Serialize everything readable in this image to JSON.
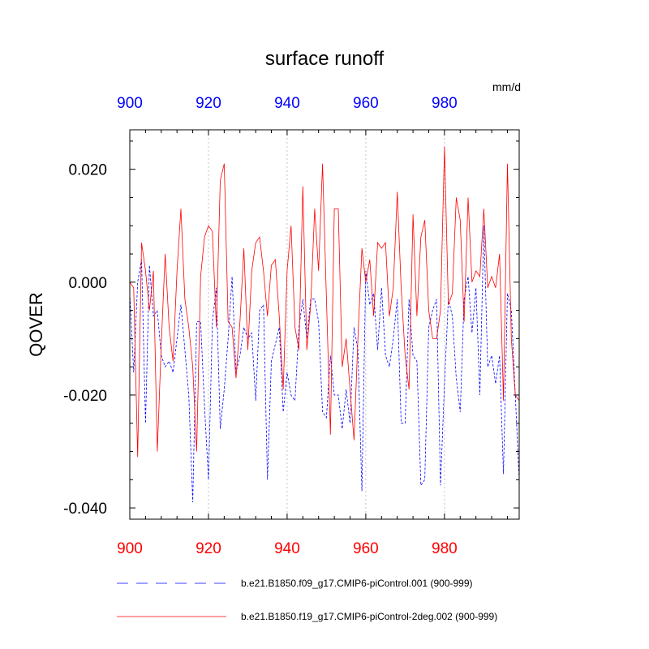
{
  "chart_data": {
    "type": "line",
    "title": "surface runoff",
    "units": "mm/d",
    "ylabel": "QOVER",
    "xlim": [
      900,
      999
    ],
    "ylim": [
      -0.042,
      0.027
    ],
    "x_ticks": [
      900,
      920,
      940,
      960,
      980
    ],
    "x_tick_labels": [
      "900",
      "920",
      "940",
      "960",
      "980"
    ],
    "y_ticks": [
      -0.04,
      -0.02,
      0.0,
      0.02
    ],
    "y_tick_labels": [
      "-0.040",
      "-0.020",
      "0.000",
      "0.020"
    ],
    "top_axis_color": "#0000ff",
    "bottom_axis_color": "#ff0000",
    "gridlines_x": [
      920,
      940,
      960,
      980
    ],
    "x_start": 900,
    "series": [
      {
        "name": "b.e21.B1850.f09_g17.CMIP6-piControl.001 (900-999)",
        "color": "#0000ff",
        "dash": "3,2",
        "values": [
          -0.002,
          -0.016,
          0.0,
          0.004,
          -0.025,
          0.003,
          -0.006,
          -0.005,
          -0.013,
          -0.015,
          -0.014,
          -0.016,
          -0.01,
          -0.004,
          -0.012,
          -0.02,
          -0.039,
          -0.007,
          -0.007,
          -0.022,
          -0.035,
          -0.007,
          -0.001,
          -0.026,
          -0.019,
          -0.01,
          0.001,
          -0.016,
          -0.013,
          -0.008,
          -0.01,
          -0.009,
          -0.021,
          -0.005,
          -0.004,
          -0.035,
          -0.014,
          -0.011,
          -0.008,
          -0.023,
          -0.016,
          -0.02,
          -0.021,
          -0.008,
          -0.003,
          -0.01,
          -0.003,
          -0.003,
          -0.007,
          -0.023,
          -0.024,
          -0.013,
          -0.02,
          -0.02,
          -0.026,
          -0.019,
          -0.025,
          -0.008,
          -0.012,
          -0.037,
          0.002,
          -0.004,
          -0.002,
          -0.012,
          -0.001,
          -0.013,
          -0.015,
          -0.01,
          -0.003,
          -0.025,
          -0.025,
          -0.003,
          -0.013,
          -0.014,
          -0.036,
          -0.035,
          -0.008,
          -0.005,
          -0.003,
          -0.036,
          -0.018,
          -0.003,
          -0.006,
          -0.017,
          -0.023,
          -0.003,
          0.001,
          -0.009,
          -0.001,
          -0.02,
          0.01,
          -0.015,
          -0.013,
          -0.018,
          -0.013,
          -0.034,
          -0.002,
          -0.005,
          -0.02,
          -0.035
        ]
      },
      {
        "name": "b.e21.B1850.f19_g17.CMIP6-piControl-2deg.002 (900-999)",
        "color": "#ff0000",
        "dash": "",
        "values": [
          0.0,
          -0.001,
          -0.031,
          0.007,
          0.002,
          -0.005,
          0.002,
          -0.03,
          -0.011,
          0.005,
          -0.008,
          -0.014,
          0.002,
          0.013,
          -0.003,
          -0.008,
          -0.015,
          -0.03,
          0.001,
          0.008,
          0.01,
          0.009,
          -0.008,
          0.018,
          0.021,
          -0.007,
          -0.008,
          -0.017,
          -0.007,
          0.006,
          -0.012,
          0.002,
          0.007,
          0.008,
          0.002,
          -0.006,
          0.003,
          0.004,
          -0.006,
          -0.019,
          0.002,
          0.01,
          -0.008,
          -0.012,
          0.017,
          -0.012,
          -0.004,
          0.013,
          0.002,
          0.021,
          -0.003,
          -0.027,
          0.013,
          0.013,
          -0.015,
          -0.01,
          -0.019,
          -0.028,
          -0.01,
          0.006,
          0.0,
          0.004,
          -0.006,
          0.007,
          0.006,
          0.007,
          -0.006,
          -0.001,
          0.016,
          -0.001,
          -0.013,
          -0.019,
          0.012,
          -0.006,
          0.008,
          0.011,
          -0.005,
          -0.01,
          -0.01,
          -0.005,
          0.024,
          -0.004,
          -0.002,
          0.015,
          0.011,
          -0.007,
          0.015,
          0.0,
          0.002,
          0.001,
          0.013,
          -0.001,
          0.001,
          -0.001,
          0.005,
          -0.021,
          0.021,
          -0.01,
          -0.02,
          -0.021
        ]
      }
    ]
  }
}
